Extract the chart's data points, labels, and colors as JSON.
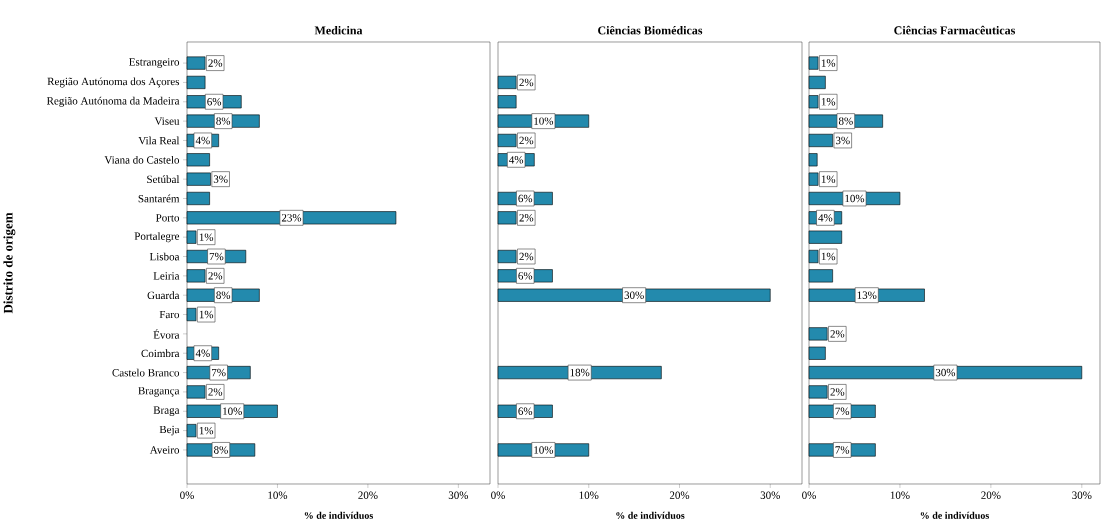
{
  "chart_data": [
    {
      "type": "bar",
      "orientation": "horizontal",
      "title": "Medicina",
      "xlabel": "% de indivíduos",
      "ylabel": "Distrito de origem",
      "color": "#238aad",
      "categories": [
        "Estrangeiro",
        "Região Autónoma dos Açores",
        "Região Autónoma da Madeira",
        "Viseu",
        "Vila Real",
        "Viana do Castelo",
        "Setúbal",
        "Santarém",
        "Porto",
        "Portalegre",
        "Lisboa",
        "Leiria",
        "Guarda",
        "Faro",
        "Évora",
        "Coimbra",
        "Castelo Branco",
        "Bragança",
        "Braga",
        "Beja",
        "Aveiro"
      ],
      "values": [
        2,
        2,
        6,
        8,
        3.5,
        2.5,
        2.6,
        2.5,
        23.1,
        1,
        6.5,
        2,
        8,
        1,
        null,
        3.5,
        7,
        2,
        10,
        1,
        7.5
      ],
      "value_labels": [
        "2%",
        null,
        "6%",
        "8%",
        "4%",
        null,
        "3%",
        null,
        "23%",
        "1%",
        "7%",
        "2%",
        "8%",
        "1%",
        null,
        "4%",
        "7%",
        "2%",
        "10%",
        "1%",
        "8%"
      ],
      "xlim": [
        0,
        33.5
      ],
      "xticks": [
        {
          "value": 0,
          "label": "0%"
        },
        {
          "value": 10,
          "label": "10%"
        },
        {
          "value": 20,
          "label": "20%"
        },
        {
          "value": 30,
          "label": "30%"
        }
      ]
    },
    {
      "type": "bar",
      "orientation": "horizontal",
      "title": "Ciências Biomédicas",
      "xlabel": "% de indivíduos",
      "color": "#238aad",
      "tick_labels": "x",
      "values": [
        null,
        2,
        2,
        10,
        2,
        4,
        null,
        6,
        2,
        null,
        2,
        6,
        30,
        null,
        null,
        null,
        18,
        null,
        6,
        null,
        10
      ],
      "value_labels": [
        null,
        "2%",
        null,
        "10%",
        "2%",
        "4%",
        null,
        "6%",
        "2%",
        null,
        "2%",
        "6%",
        "30%",
        null,
        null,
        null,
        "18%",
        null,
        "6%",
        null,
        "10%"
      ],
      "xlim": [
        0,
        33.5
      ],
      "xticks": [
        {
          "value": 0,
          "label": "0%"
        },
        {
          "value": 10,
          "label": "10%"
        },
        {
          "value": 20,
          "label": "20%"
        },
        {
          "value": 30,
          "label": "30%"
        }
      ]
    },
    {
      "type": "bar",
      "orientation": "horizontal",
      "title": "Ciências Farmacêuticas",
      "xlabel": "% de indivíduos",
      "color": "#238aad",
      "tick_labels": "x",
      "values": [
        1,
        1.8,
        1,
        8.1,
        2.6,
        0.9,
        1,
        10,
        3.6,
        3.6,
        1,
        2.6,
        12.7,
        null,
        2,
        1.8,
        30,
        2,
        7.3,
        null,
        7.3
      ],
      "value_labels": [
        "1%",
        null,
        "1%",
        "8%",
        "3%",
        null,
        "1%",
        "10%",
        "4%",
        null,
        "1%",
        null,
        "13%",
        null,
        "2%",
        null,
        "30%",
        "2%",
        "7%",
        null,
        "7%"
      ],
      "xlim": [
        0,
        32
      ],
      "xticks": [
        {
          "value": 0,
          "label": "0%"
        },
        {
          "value": 10,
          "label": "10%"
        },
        {
          "value": 20,
          "label": "20%"
        },
        {
          "value": 30,
          "label": "30%"
        }
      ]
    }
  ]
}
